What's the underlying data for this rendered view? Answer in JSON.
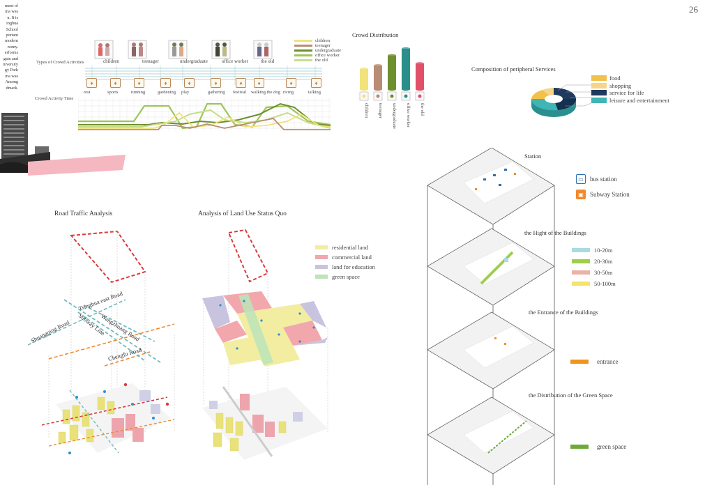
{
  "page_number": "26",
  "side_text": [
    "ment of",
    "ina was",
    "u. It is",
    "inghua",
    "School",
    "portant",
    "modern",
    "nomy.",
    "erforms",
    "gain and",
    "niversity",
    "gy Park",
    "ina was",
    "Among",
    "dmark."
  ],
  "crowd_activities": {
    "types_label": "Types of Crowd Activities",
    "time_label": "Crowd Activity Time",
    "crowd_types": [
      "children",
      "teenager",
      "undergraduate",
      "office worker",
      "the old"
    ],
    "activities": [
      "rest",
      "sports",
      "running",
      "gardening",
      "play",
      "gathering",
      "festival",
      "walking the dog",
      "ricing",
      "talking"
    ],
    "legend": [
      {
        "label": "children",
        "color": "#f2e27a"
      },
      {
        "label": "teenager",
        "color": "#b98c74"
      },
      {
        "label": "undergraduate",
        "color": "#6e8f2e"
      },
      {
        "label": "office worker",
        "color": "#9fc55a"
      },
      {
        "label": "the old",
        "color": "#c7dd8a"
      }
    ]
  },
  "crowd_distribution": {
    "title": "Crowd Distribution",
    "bars": [
      {
        "label": "children",
        "value": 30,
        "color": "#f2e27a"
      },
      {
        "label": "teenager",
        "value": 35,
        "color": "#b98c74"
      },
      {
        "label": "undergraduate",
        "value": 50,
        "color": "#6e8f2e"
      },
      {
        "label": "office worker",
        "value": 60,
        "color": "#2a8f8a"
      },
      {
        "label": "the old",
        "value": 38,
        "color": "#e0506a"
      }
    ]
  },
  "services": {
    "title": "Composition of peripheral Services",
    "items": [
      {
        "label": "food",
        "color": "#f2c14a"
      },
      {
        "label": "shopping",
        "color": "#f6d48a"
      },
      {
        "label": "service for life",
        "color": "#1f3a5f"
      },
      {
        "label": "leisure and entertainment",
        "color": "#3fb5b5"
      }
    ]
  },
  "road_traffic": {
    "title": "Road Traffic Analysis",
    "roads": [
      "Tsinghua east Road",
      "Wangzhuang Road",
      "Shuangqing Road",
      "Subway Line",
      "Chengfu Road"
    ]
  },
  "land_use": {
    "title": "Analysis of Land Use Status Quo",
    "legend": [
      {
        "label": "residential land",
        "color": "#f2eda0"
      },
      {
        "label": "commercial land",
        "color": "#f2a7ad"
      },
      {
        "label": "land for education",
        "color": "#c8c4e0"
      },
      {
        "label": "green space",
        "color": "#bfe3b8"
      }
    ]
  },
  "layers": {
    "station": {
      "title": "Station",
      "legend": [
        {
          "label": "bus station",
          "icon": "bus-icon"
        },
        {
          "label": "Subway Station",
          "icon": "subway-icon"
        }
      ]
    },
    "height": {
      "title": "the Hight of the Buildings",
      "legend": [
        {
          "label": "10-20m",
          "color": "#a9dbe3"
        },
        {
          "label": "20-30m",
          "color": "#9fcf4a"
        },
        {
          "label": "30-50m",
          "color": "#eab3a8"
        },
        {
          "label": "50-100m",
          "color": "#f6e46a"
        }
      ]
    },
    "entrance": {
      "title": "the Entrance of the Buildings",
      "legend": [
        {
          "label": "entrance",
          "color": "#f0941e"
        }
      ]
    },
    "green": {
      "title": "the Distribution of the Green Space",
      "legend": [
        {
          "label": "green space",
          "color": "#6eaa3a"
        }
      ]
    }
  }
}
